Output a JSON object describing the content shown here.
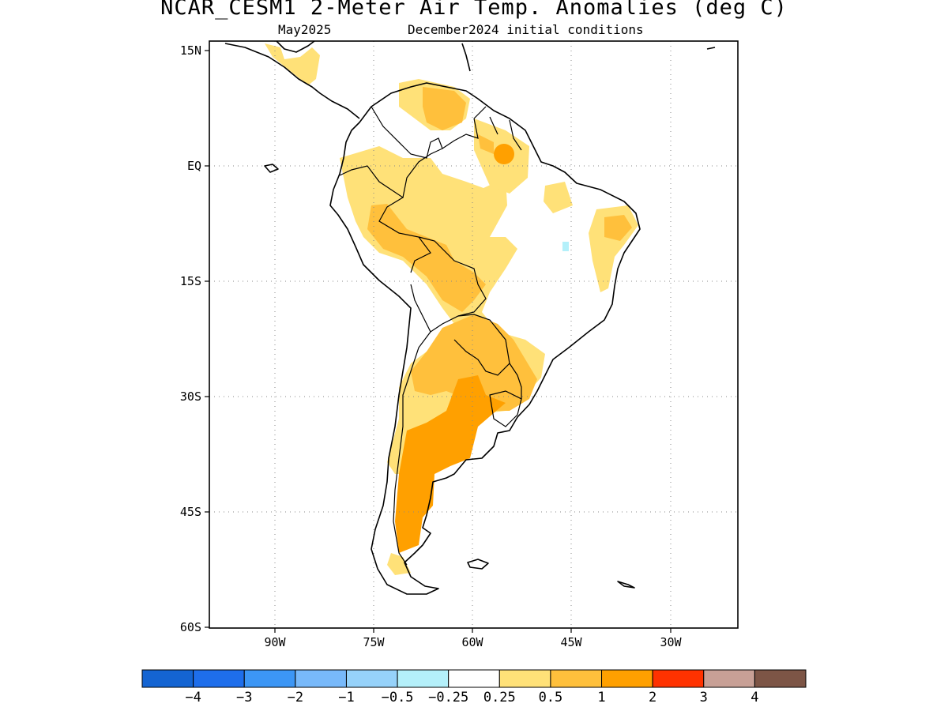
{
  "title": "NCAR_CESM1 2-Meter Air Temp. Anomalies (deg C)",
  "subtitle_left": "May2025",
  "subtitle_right": "December2024 initial conditions",
  "lat_labels": [
    "15N",
    "EQ",
    "15S",
    "30S",
    "45S",
    "60S"
  ],
  "lon_labels": [
    "90W",
    "75W",
    "60W",
    "45W",
    "30W"
  ],
  "colorbar": {
    "colors": [
      "#1464d2",
      "#1e6eeb",
      "#3c96f5",
      "#78b9fa",
      "#96d2fa",
      "#b4f0fa",
      "#ffffff",
      "#ffe178",
      "#ffc03c",
      "#ffa000",
      "#ff3200",
      "#c8a096",
      "#7d5546"
    ],
    "labels": [
      "−4",
      "−3",
      "−2",
      "−1",
      "−0.5",
      "−0.25",
      "0.25",
      "0.5",
      "1",
      "2",
      "3",
      "4"
    ]
  },
  "colors": {
    "light_yellow": "#ffe178",
    "light_orange": "#ffc03c",
    "orange": "#ffa000",
    "light_blue": "#b4f0fa"
  }
}
